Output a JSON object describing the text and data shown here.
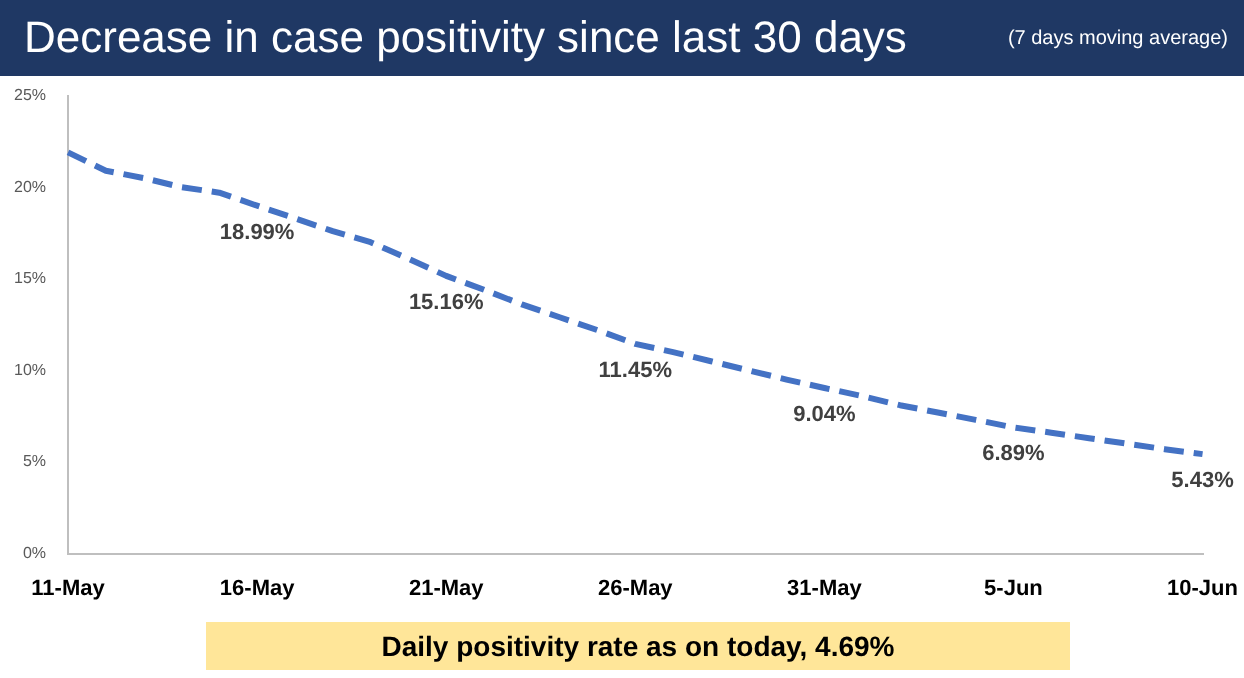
{
  "chart_data": {
    "type": "line",
    "title": "Decrease in case positivity since last 30 days",
    "subtitle": "(7 days moving average)",
    "categories": [
      "11-May",
      null,
      null,
      null,
      null,
      "16-May",
      null,
      null,
      null,
      null,
      "21-May",
      null,
      null,
      null,
      null,
      "26-May",
      null,
      null,
      null,
      null,
      "31-May",
      null,
      null,
      null,
      null,
      "5-Jun",
      null,
      null,
      null,
      null,
      "10-Jun"
    ],
    "values": [
      21.9,
      20.9,
      20.5,
      20.0,
      19.7,
      18.99,
      18.3,
      17.6,
      17.0,
      16.1,
      15.16,
      14.4,
      13.6,
      12.9,
      12.2,
      11.45,
      11.0,
      10.5,
      10.0,
      9.5,
      9.04,
      8.6,
      8.1,
      7.7,
      7.3,
      6.89,
      6.6,
      6.3,
      6.0,
      5.7,
      5.43
    ],
    "value_labels": [
      null,
      null,
      null,
      null,
      null,
      "18.99%",
      null,
      null,
      null,
      null,
      "15.16%",
      null,
      null,
      null,
      null,
      "11.45%",
      null,
      null,
      null,
      null,
      "9.04%",
      null,
      null,
      null,
      null,
      "6.89%",
      null,
      null,
      null,
      null,
      "5.43%"
    ],
    "color": "#4472c4",
    "line_style": "dashed",
    "marker": "none",
    "ylim": [
      0,
      25
    ],
    "yticks": [
      {
        "value": 0,
        "label": "0%"
      },
      {
        "value": 5,
        "label": "5%"
      },
      {
        "value": 10,
        "label": "10%"
      },
      {
        "value": 15,
        "label": "15%"
      },
      {
        "value": 20,
        "label": "20%"
      },
      {
        "value": 25,
        "label": "25%"
      }
    ],
    "annotations": [
      "Daily positivity rate as on today, 4.69%"
    ]
  }
}
